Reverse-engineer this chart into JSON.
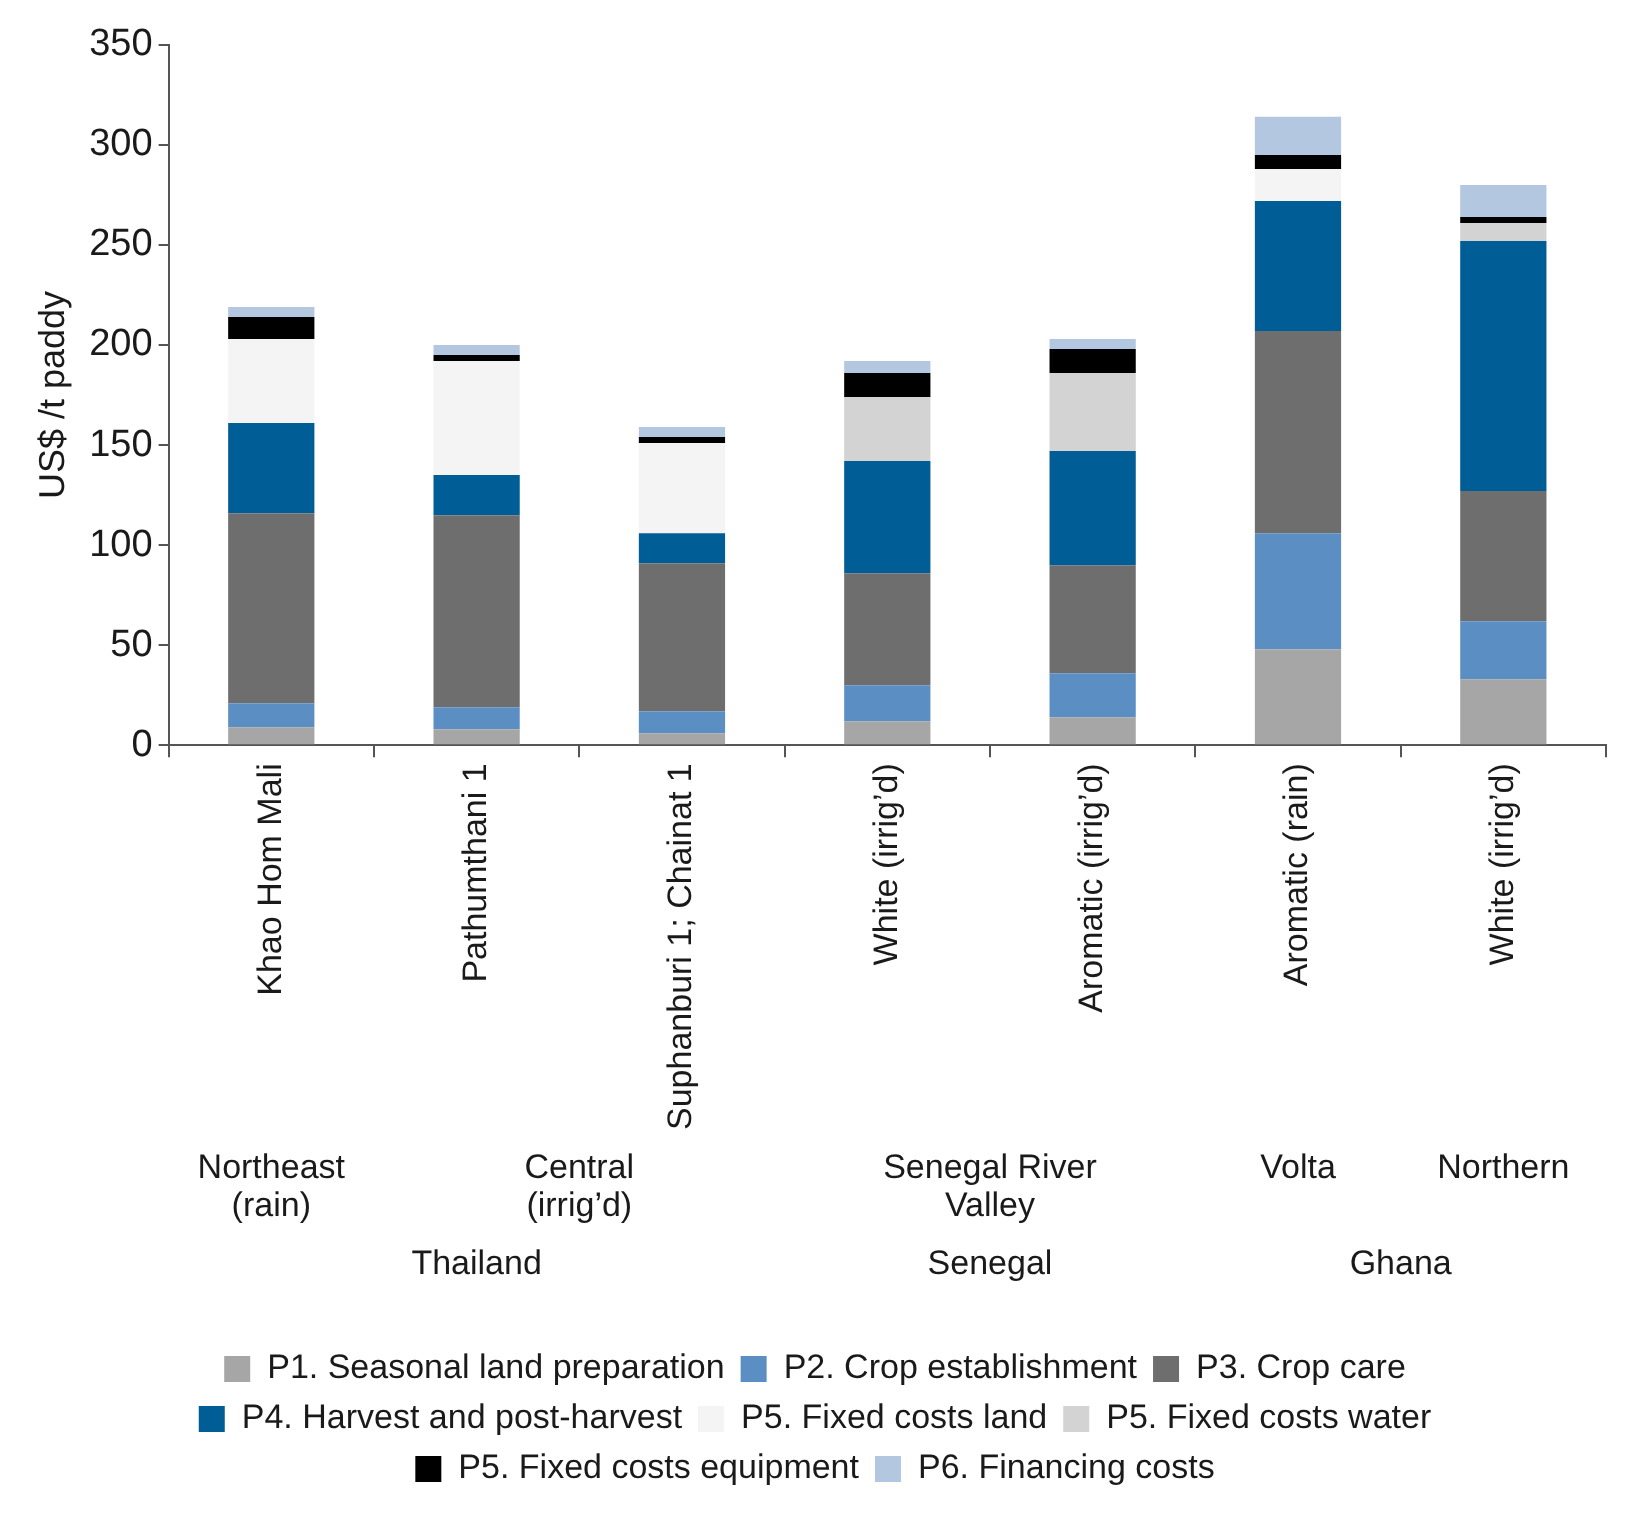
{
  "chart_data": {
    "type": "bar",
    "stacked": true,
    "ylabel": "US$ /t paddy",
    "categories": [
      "Khao Hom Mali",
      "Pathumthani 1",
      "Suphanburi 1; Chainat 1",
      "White (irrig’d)",
      "Aromatic (irrig’d)",
      "Aromatic (rain)",
      "White (irrig’d)"
    ],
    "series": [
      {
        "name": "P1. Seasonal land preparation",
        "color": "#a6a6a6",
        "values": [
          9,
          8,
          6,
          12,
          14,
          48,
          33
        ]
      },
      {
        "name": "P2. Crop establishment",
        "color": "#5b8fc4",
        "values": [
          12,
          11,
          11,
          18,
          22,
          58,
          29
        ]
      },
      {
        "name": "P3. Crop care",
        "color": "#6e6e6e",
        "values": [
          95,
          96,
          74,
          56,
          54,
          101,
          65
        ]
      },
      {
        "name": "P4. Harvest and post-harvest",
        "color": "#005d96",
        "values": [
          45,
          20,
          15,
          56,
          57,
          65,
          125
        ]
      },
      {
        "name": "P5. Fixed costs land",
        "color": "#f4f4f4",
        "values": [
          42,
          57,
          45,
          0,
          0,
          16,
          0
        ]
      },
      {
        "name": "P5. Fixed costs water",
        "color": "#d3d3d3",
        "values": [
          0,
          0,
          0,
          32,
          39,
          0,
          9
        ]
      },
      {
        "name": "P5. Fixed costs equipment",
        "color": "#000000",
        "values": [
          11,
          3,
          3,
          12,
          12,
          7,
          3
        ]
      },
      {
        "name": "P6. Financing costs",
        "color": "#b4c7e0",
        "values": [
          5,
          5,
          5,
          6,
          5,
          19,
          16
        ]
      }
    ],
    "ylim": [
      0,
      350
    ],
    "yticks": [
      0,
      50,
      100,
      150,
      200,
      250,
      300,
      350
    ],
    "grid": false,
    "legend": "bottom",
    "annotations": [
      "Northeast (rain)",
      "Central (irrig’d)",
      "Senegal River Valley",
      "Volta",
      "Northern",
      "Thailand",
      "Senegal",
      "Ghana"
    ]
  }
}
